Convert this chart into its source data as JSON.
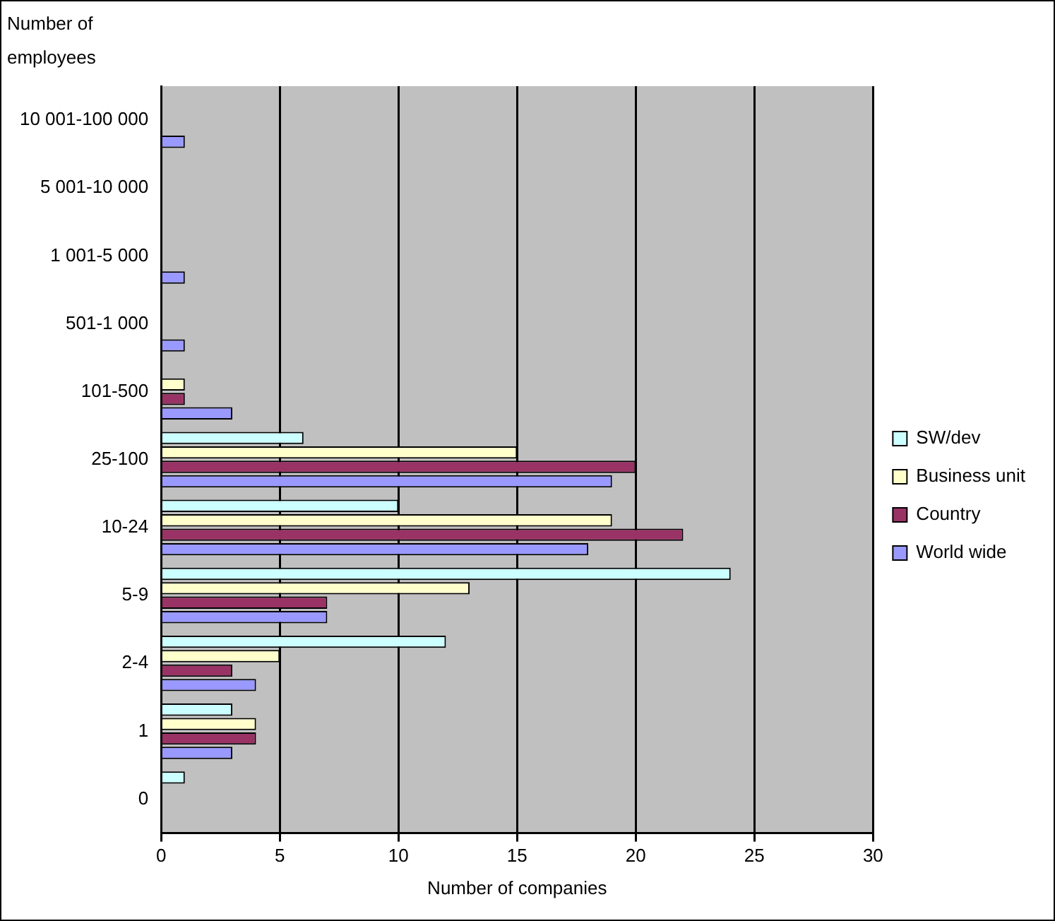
{
  "chart_data": {
    "type": "bar",
    "orientation": "horizontal",
    "xlabel": "Number of companies",
    "ylabel": "Number of employees",
    "categories": [
      "10 001-100 000",
      "5 001-10 000",
      "1 001-5 000",
      "501-1 000",
      "101-500",
      "25-100",
      "10-24",
      "5-9",
      "2-4",
      "1",
      "0"
    ],
    "series": [
      {
        "name": "SW/dev",
        "color": "#ccffff",
        "values": [
          null,
          null,
          null,
          null,
          null,
          6,
          10,
          24,
          12,
          3,
          1
        ]
      },
      {
        "name": "Business unit",
        "color": "#ffffcc",
        "values": [
          null,
          null,
          null,
          null,
          1,
          15,
          19,
          13,
          5,
          4,
          null
        ]
      },
      {
        "name": "Country",
        "color": "#993366",
        "values": [
          null,
          null,
          null,
          null,
          1,
          20,
          22,
          7,
          3,
          4,
          null
        ]
      },
      {
        "name": "World wide",
        "color": "#9999ff",
        "values": [
          1,
          null,
          1,
          1,
          3,
          19,
          18,
          7,
          4,
          3,
          null
        ]
      }
    ],
    "xlim": [
      0,
      30
    ],
    "xticks": [
      0,
      5,
      10,
      15,
      20,
      25,
      30
    ],
    "grid": "x",
    "legend": "right"
  }
}
